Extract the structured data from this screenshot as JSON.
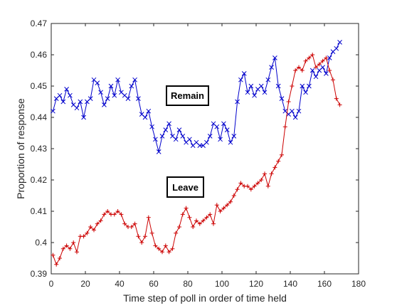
{
  "chart_data": {
    "type": "line",
    "title": "",
    "xlabel": "Time step of poll in order of time held",
    "ylabel": "Proportion of response",
    "xlim": [
      0,
      180
    ],
    "ylim": [
      0.39,
      0.47
    ],
    "xticks": [
      "0",
      "20",
      "40",
      "60",
      "80",
      "100",
      "120",
      "140",
      "160",
      "180"
    ],
    "yticks": [
      "0.39",
      "0.4",
      "0.41",
      "0.42",
      "0.43",
      "0.44",
      "0.45",
      "0.46",
      "0.47"
    ],
    "grid": false,
    "legend": "none",
    "annotations": [
      "Remain",
      "Leave"
    ],
    "series": [
      {
        "name": "Remain",
        "color": "#0000cc",
        "marker": "x",
        "x": [
          1,
          3,
          5,
          7,
          9,
          11,
          13,
          15,
          17,
          19,
          21,
          23,
          25,
          27,
          29,
          31,
          33,
          35,
          37,
          39,
          41,
          43,
          45,
          47,
          49,
          51,
          53,
          55,
          57,
          59,
          61,
          63,
          65,
          67,
          69,
          71,
          73,
          75,
          77,
          79,
          81,
          83,
          85,
          87,
          89,
          91,
          93,
          95,
          97,
          99,
          101,
          103,
          105,
          107,
          109,
          111,
          113,
          115,
          117,
          119,
          121,
          123,
          125,
          127,
          129,
          131,
          133,
          135,
          137,
          139,
          141,
          143,
          145,
          147,
          149,
          151,
          153,
          155,
          157,
          159,
          161,
          163,
          165,
          167,
          169
        ],
        "values": [
          0.442,
          0.446,
          0.447,
          0.445,
          0.449,
          0.447,
          0.444,
          0.443,
          0.445,
          0.44,
          0.445,
          0.446,
          0.452,
          0.451,
          0.448,
          0.444,
          0.446,
          0.45,
          0.447,
          0.452,
          0.448,
          0.447,
          0.446,
          0.45,
          0.452,
          0.446,
          0.441,
          0.44,
          0.442,
          0.437,
          0.433,
          0.429,
          0.434,
          0.436,
          0.438,
          0.434,
          0.433,
          0.436,
          0.434,
          0.432,
          0.433,
          0.431,
          0.432,
          0.431,
          0.431,
          0.432,
          0.434,
          0.438,
          0.437,
          0.433,
          0.438,
          0.436,
          0.432,
          0.434,
          0.445,
          0.452,
          0.454,
          0.448,
          0.45,
          0.447,
          0.449,
          0.45,
          0.448,
          0.452,
          0.456,
          0.459,
          0.45,
          0.446,
          0.442,
          0.441,
          0.442,
          0.44,
          0.442,
          0.45,
          0.448,
          0.45,
          0.455,
          0.453,
          0.455,
          0.456,
          0.454,
          0.459,
          0.461,
          0.462,
          0.464
        ]
      },
      {
        "name": "Leave",
        "color": "#cc0000",
        "marker": "+",
        "x": [
          1,
          3,
          5,
          7,
          9,
          11,
          13,
          15,
          17,
          19,
          21,
          23,
          25,
          27,
          29,
          31,
          33,
          35,
          37,
          39,
          41,
          43,
          45,
          47,
          49,
          51,
          53,
          55,
          57,
          59,
          61,
          63,
          65,
          67,
          69,
          71,
          73,
          75,
          77,
          79,
          81,
          83,
          85,
          87,
          89,
          91,
          93,
          95,
          97,
          99,
          101,
          103,
          105,
          107,
          109,
          111,
          113,
          115,
          117,
          119,
          121,
          123,
          125,
          127,
          129,
          131,
          133,
          135,
          137,
          139,
          141,
          143,
          145,
          147,
          149,
          151,
          153,
          155,
          157,
          159,
          161,
          163,
          165,
          167,
          169
        ],
        "values": [
          0.396,
          0.393,
          0.395,
          0.398,
          0.399,
          0.398,
          0.4,
          0.397,
          0.402,
          0.402,
          0.403,
          0.405,
          0.404,
          0.406,
          0.407,
          0.409,
          0.41,
          0.409,
          0.409,
          0.41,
          0.409,
          0.406,
          0.405,
          0.405,
          0.406,
          0.402,
          0.4,
          0.402,
          0.408,
          0.403,
          0.399,
          0.398,
          0.397,
          0.399,
          0.397,
          0.398,
          0.403,
          0.405,
          0.409,
          0.411,
          0.408,
          0.405,
          0.407,
          0.406,
          0.407,
          0.408,
          0.409,
          0.406,
          0.412,
          0.41,
          0.411,
          0.412,
          0.413,
          0.415,
          0.417,
          0.419,
          0.418,
          0.418,
          0.417,
          0.418,
          0.419,
          0.42,
          0.422,
          0.418,
          0.422,
          0.424,
          0.426,
          0.428,
          0.437,
          0.445,
          0.45,
          0.455,
          0.456,
          0.455,
          0.458,
          0.459,
          0.46,
          0.456,
          0.457,
          0.458,
          0.459,
          0.455,
          0.452,
          0.446,
          0.444
        ]
      }
    ]
  }
}
